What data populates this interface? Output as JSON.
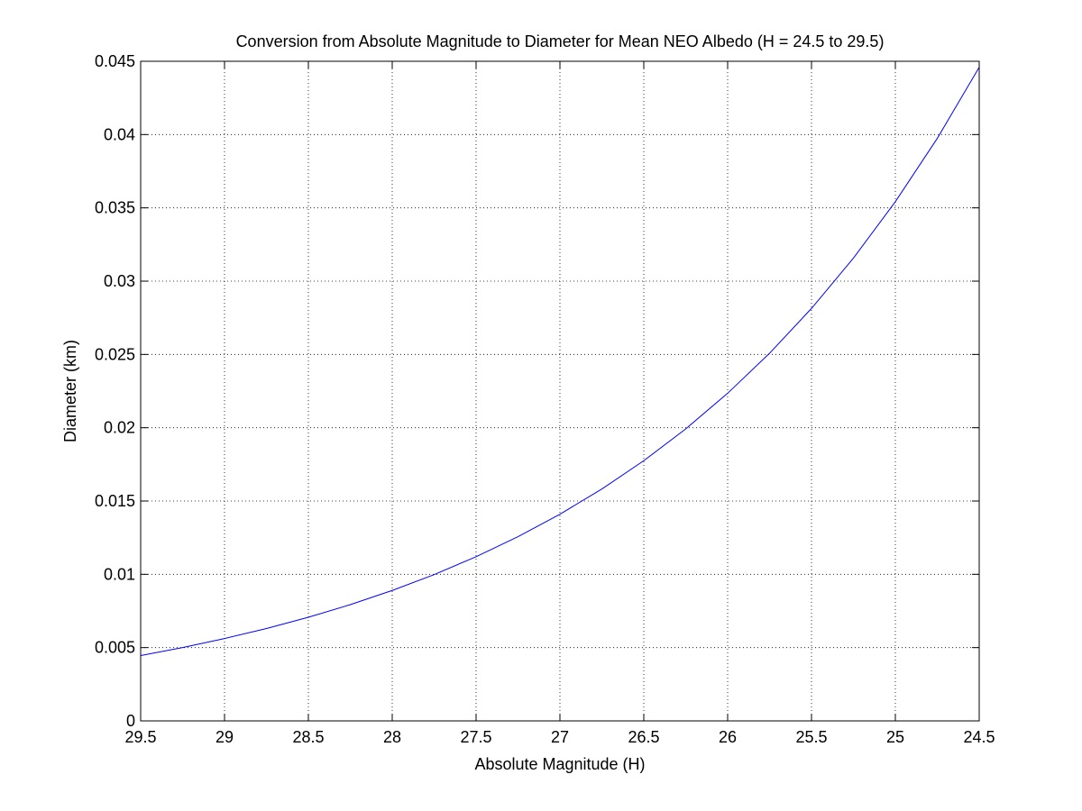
{
  "chart_data": {
    "type": "line",
    "title": "Conversion from Absolute Magnitude to Diameter for Mean NEO Albedo (H = 24.5 to 29.5)",
    "xlabel": "Absolute Magnitude (H)",
    "ylabel": "Diameter (km)",
    "xlim": [
      29.5,
      24.5
    ],
    "ylim": [
      0,
      0.045
    ],
    "x_reversed": true,
    "grid": true,
    "legend": "none",
    "x_ticks": [
      "29.5",
      "29",
      "28.5",
      "28",
      "27.5",
      "27",
      "26.5",
      "26",
      "25.5",
      "25",
      "24.5"
    ],
    "y_ticks": [
      "0",
      "0.005",
      "0.01",
      "0.015",
      "0.02",
      "0.025",
      "0.03",
      "0.035",
      "0.04",
      "0.045"
    ],
    "series": [
      {
        "color": "#0000ff",
        "x": [
          29.5,
          29.25,
          29.0,
          28.75,
          28.5,
          28.25,
          28.0,
          27.75,
          27.5,
          27.25,
          27.0,
          26.75,
          26.5,
          26.25,
          26.0,
          25.75,
          25.5,
          25.25,
          25.0,
          24.75,
          24.5
        ],
        "y": [
          0.00446,
          0.005,
          0.00562,
          0.0063,
          0.00707,
          0.00793,
          0.0089,
          0.00998,
          0.0112,
          0.01257,
          0.0141,
          0.01582,
          0.01775,
          0.01992,
          0.02235,
          0.02508,
          0.02814,
          0.03157,
          0.03542,
          0.03974,
          0.04459
        ]
      }
    ]
  }
}
